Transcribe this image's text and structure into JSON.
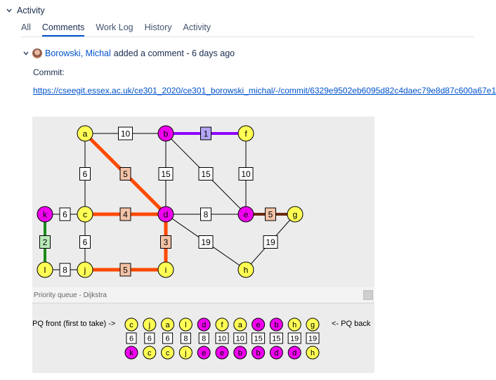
{
  "section": {
    "title": "Activity"
  },
  "tabs": [
    {
      "label": "All",
      "active": false
    },
    {
      "label": "Comments",
      "active": true
    },
    {
      "label": "Work Log",
      "active": false
    },
    {
      "label": "History",
      "active": false
    },
    {
      "label": "Activity",
      "active": false
    }
  ],
  "comment": {
    "author": "Borowski, Michal",
    "action": "added a comment - 6 days ago",
    "label": "Commit:",
    "link": "https://cseegit.essex.ac.uk/ce301_2020/ce301_borowski_michal/-/commit/6329e9502eb6095d82c4daec79e8d87c600a67e1"
  },
  "colors": {
    "visited": "#ee00ee",
    "unvisited": "#ffff55",
    "path_orange": "#ff4a00",
    "edge_purple": "#8f00ff",
    "edge_green": "#1a8a1a",
    "edge_brown": "#6b2a10",
    "weight_orange_fill": "#f4c3a7",
    "weight_purple_fill": "#b4a5f5",
    "weight_green_fill": "#b9eab9"
  },
  "graph": {
    "nodes": [
      {
        "id": "a",
        "label": "a",
        "state": "unvisited"
      },
      {
        "id": "b",
        "label": "b",
        "state": "visited"
      },
      {
        "id": "f",
        "label": "f",
        "state": "unvisited"
      },
      {
        "id": "k",
        "label": "k",
        "state": "visited"
      },
      {
        "id": "c",
        "label": "c",
        "state": "unvisited"
      },
      {
        "id": "d",
        "label": "d",
        "state": "visited"
      },
      {
        "id": "e",
        "label": "e",
        "state": "visited"
      },
      {
        "id": "g",
        "label": "g",
        "state": "unvisited"
      },
      {
        "id": "l",
        "label": "l",
        "state": "unvisited"
      },
      {
        "id": "j",
        "label": "j",
        "state": "unvisited"
      },
      {
        "id": "i",
        "label": "i",
        "state": "unvisited"
      },
      {
        "id": "h",
        "label": "h",
        "state": "unvisited"
      }
    ],
    "edges": [
      {
        "from": "a",
        "to": "b",
        "weight": "10",
        "style": "normal"
      },
      {
        "from": "b",
        "to": "f",
        "weight": "1",
        "style": "purple"
      },
      {
        "from": "a",
        "to": "c",
        "weight": "6",
        "style": "normal"
      },
      {
        "from": "a",
        "to": "d",
        "weight": "5",
        "style": "orange"
      },
      {
        "from": "b",
        "to": "d",
        "weight": "15",
        "style": "normal"
      },
      {
        "from": "b",
        "to": "e",
        "weight": "15",
        "style": "normal"
      },
      {
        "from": "f",
        "to": "e",
        "weight": "10",
        "style": "normal"
      },
      {
        "from": "k",
        "to": "c",
        "weight": "6",
        "style": "normal"
      },
      {
        "from": "c",
        "to": "d",
        "weight": "4",
        "style": "orange"
      },
      {
        "from": "d",
        "to": "e",
        "weight": "8",
        "style": "normal"
      },
      {
        "from": "e",
        "to": "g",
        "weight": "5",
        "style": "brown"
      },
      {
        "from": "k",
        "to": "l",
        "weight": "2",
        "style": "green"
      },
      {
        "from": "c",
        "to": "j",
        "weight": "6",
        "style": "normal"
      },
      {
        "from": "d",
        "to": "i",
        "weight": "3",
        "style": "orange"
      },
      {
        "from": "d",
        "to": "h",
        "weight": "19",
        "style": "normal"
      },
      {
        "from": "g",
        "to": "h",
        "weight": "19",
        "style": "normal"
      },
      {
        "from": "l",
        "to": "j",
        "weight": "8",
        "style": "normal"
      },
      {
        "from": "j",
        "to": "i",
        "weight": "5",
        "style": "orange"
      }
    ]
  },
  "pq": {
    "title": "Priority queue - Dijkstra",
    "front_label": "PQ front (first to take) ->",
    "back_label": "<- PQ back",
    "items": [
      {
        "node": "c",
        "node_state": "unvisited",
        "priority": "6",
        "from": "k",
        "from_state": "visited"
      },
      {
        "node": "j",
        "node_state": "unvisited",
        "priority": "6",
        "from": "c",
        "from_state": "unvisited"
      },
      {
        "node": "a",
        "node_state": "unvisited",
        "priority": "6",
        "from": "c",
        "from_state": "unvisited"
      },
      {
        "node": "l",
        "node_state": "unvisited",
        "priority": "8",
        "from": "j",
        "from_state": "unvisited"
      },
      {
        "node": "d",
        "node_state": "visited",
        "priority": "8",
        "from": "e",
        "from_state": "visited"
      },
      {
        "node": "f",
        "node_state": "unvisited",
        "priority": "10",
        "from": "e",
        "from_state": "visited"
      },
      {
        "node": "a",
        "node_state": "unvisited",
        "priority": "10",
        "from": "b",
        "from_state": "visited"
      },
      {
        "node": "e",
        "node_state": "visited",
        "priority": "15",
        "from": "b",
        "from_state": "visited"
      },
      {
        "node": "b",
        "node_state": "visited",
        "priority": "15",
        "from": "d",
        "from_state": "visited"
      },
      {
        "node": "h",
        "node_state": "unvisited",
        "priority": "19",
        "from": "d",
        "from_state": "visited"
      },
      {
        "node": "g",
        "node_state": "unvisited",
        "priority": "19",
        "from": "h",
        "from_state": "unvisited"
      }
    ]
  }
}
